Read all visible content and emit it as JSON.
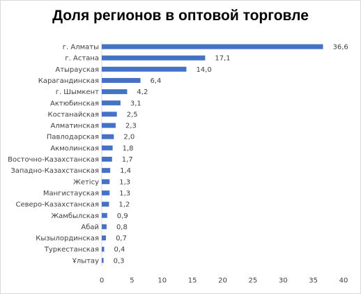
{
  "chart_data": {
    "type": "bar",
    "orientation": "horizontal",
    "title": "Доля регионов в оптовой торговле",
    "xlabel": "",
    "ylabel": "",
    "categories": [
      "г. Алматы",
      "г. Астана",
      "Атырауская",
      "Карагандинская",
      "г. Шымкент",
      "Актюбинская",
      "Костанайская",
      "Алматинская",
      "Павлодарская",
      "Акмолинская",
      "Восточно-Казахстанская",
      "Западно-Казахстанская",
      "Жетісу",
      "Мангистауская",
      "Северо-Казахстанская",
      "Жамбылская",
      "Абай",
      "Кызылординская",
      "Туркестанская",
      "Ұлытау"
    ],
    "values": [
      36.6,
      17.1,
      14.0,
      6.4,
      4.2,
      3.1,
      2.5,
      2.3,
      2.0,
      1.8,
      1.7,
      1.4,
      1.3,
      1.3,
      1.2,
      0.9,
      0.8,
      0.7,
      0.4,
      0.3
    ],
    "value_labels": [
      "36,6",
      "17,1",
      "14,0",
      "6,4",
      "4,2",
      "3,1",
      "2,5",
      "2,3",
      "2,0",
      "1,8",
      "1,7",
      "1,4",
      "1,3",
      "1,3",
      "1,2",
      "0,9",
      "0,8",
      "0,7",
      "0,4",
      "0,3"
    ],
    "xlim": [
      0,
      40
    ],
    "xticks": [
      0,
      5,
      10,
      15,
      20,
      25,
      30,
      35,
      40
    ],
    "grid": false,
    "legend": "none",
    "bar_color": "#4472c4"
  }
}
